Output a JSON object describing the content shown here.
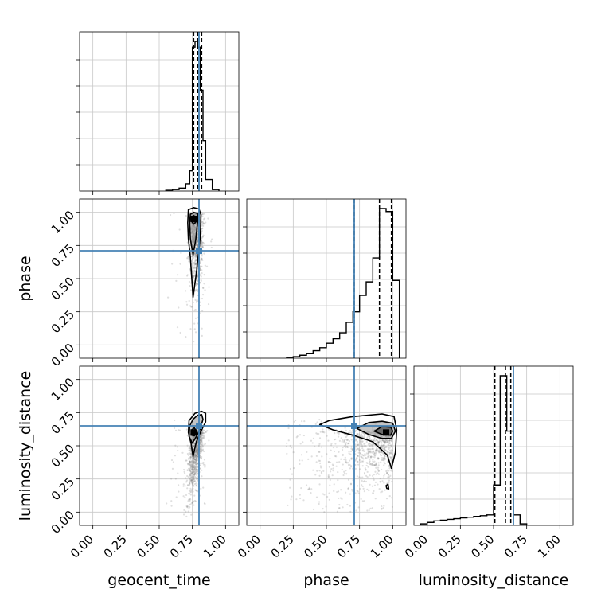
{
  "chart_data": {
    "type": "corner",
    "parameters": [
      "geocent_time",
      "phase",
      "luminosity_distance"
    ],
    "axis_range": [
      -0.1,
      1.1
    ],
    "tick_values": [
      0.0,
      0.25,
      0.5,
      0.75,
      1.0
    ],
    "tick_labels": [
      "0.00",
      "0.25",
      "0.50",
      "0.75",
      "1.00"
    ],
    "grid": true,
    "truths": {
      "geocent_time": 0.8,
      "phase": 0.71,
      "luminosity_distance": 0.65
    },
    "truth_color": "#4682b4",
    "line_color": "#000000",
    "point_color": "#808080",
    "histograms": [
      {
        "parameter": "geocent_time",
        "bin_edges": [
          0.55,
          0.6,
          0.65,
          0.7,
          0.73,
          0.75,
          0.77,
          0.79,
          0.81,
          0.83,
          0.85,
          0.9,
          0.95
        ],
        "counts": [
          0.5,
          1,
          2,
          5,
          14,
          100,
          104,
          100,
          70,
          35,
          8,
          1
        ],
        "quantiles": [
          0.76,
          0.79,
          0.82
        ]
      },
      {
        "parameter": "phase",
        "bin_edges": [
          0.2,
          0.25,
          0.3,
          0.35,
          0.4,
          0.45,
          0.5,
          0.55,
          0.6,
          0.65,
          0.7,
          0.75,
          0.8,
          0.85,
          0.9,
          0.95,
          1.0,
          1.05
        ],
        "counts": [
          0.5,
          1,
          2,
          3,
          5,
          7,
          10,
          13,
          17,
          24,
          31,
          42,
          51,
          67,
          100,
          98,
          52
        ],
        "quantiles": [
          0.71,
          0.9,
          0.99
        ]
      },
      {
        "parameter": "luminosity_distance",
        "bin_edges": [
          -0.05,
          0.0,
          0.05,
          0.1,
          0.15,
          0.2,
          0.25,
          0.3,
          0.35,
          0.4,
          0.45,
          0.5,
          0.55,
          0.6,
          0.65,
          0.7,
          0.75
        ],
        "counts": [
          1,
          2,
          3,
          3.5,
          4,
          4.5,
          5,
          5.5,
          6,
          6.5,
          7,
          27,
          100,
          63,
          7,
          1
        ],
        "quantiles": [
          0.51,
          0.59,
          0.63
        ]
      }
    ],
    "pairs": [
      {
        "x_param": "geocent_time",
        "y_param": "phase",
        "peak": [
          0.76,
          0.95
        ],
        "contours": [
          [
            [
              0.745,
              0.93
            ],
            [
              0.76,
              0.91
            ],
            [
              0.775,
              0.925
            ],
            [
              0.775,
              0.965
            ],
            [
              0.76,
              0.975
            ],
            [
              0.745,
              0.965
            ]
          ],
          [
            [
              0.735,
              0.8
            ],
            [
              0.755,
              0.68
            ],
            [
              0.775,
              0.79
            ],
            [
              0.79,
              0.93
            ],
            [
              0.79,
              0.99
            ],
            [
              0.76,
              1.0
            ],
            [
              0.735,
              0.985
            ],
            [
              0.73,
              0.92
            ]
          ],
          [
            [
              0.735,
              0.66
            ],
            [
              0.755,
              0.36
            ],
            [
              0.78,
              0.54
            ],
            [
              0.81,
              0.82
            ],
            [
              0.815,
              0.98
            ],
            [
              0.8,
              1.025
            ],
            [
              0.76,
              1.035
            ],
            [
              0.72,
              1.02
            ],
            [
              0.715,
              0.92
            ],
            [
              0.72,
              0.8
            ]
          ]
        ]
      },
      {
        "x_param": "geocent_time",
        "y_param": "luminosity_distance",
        "peak": [
          0.76,
          0.6
        ],
        "contours": [
          [
            [
              0.745,
              0.58
            ],
            [
              0.765,
              0.575
            ],
            [
              0.78,
              0.61
            ],
            [
              0.765,
              0.635
            ],
            [
              0.745,
              0.62
            ]
          ],
          [
            [
              0.725,
              0.57
            ],
            [
              0.75,
              0.52
            ],
            [
              0.78,
              0.57
            ],
            [
              0.81,
              0.63
            ],
            [
              0.83,
              0.7
            ],
            [
              0.82,
              0.735
            ],
            [
              0.79,
              0.73
            ],
            [
              0.755,
              0.7
            ],
            [
              0.73,
              0.65
            ]
          ],
          [
            [
              0.74,
              0.52
            ],
            [
              0.755,
              0.42
            ],
            [
              0.78,
              0.53
            ],
            [
              0.81,
              0.6
            ],
            [
              0.85,
              0.68
            ],
            [
              0.85,
              0.745
            ],
            [
              0.82,
              0.76
            ],
            [
              0.77,
              0.745
            ],
            [
              0.725,
              0.69
            ],
            [
              0.72,
              0.6
            ]
          ]
        ]
      },
      {
        "x_param": "phase",
        "y_param": "luminosity_distance",
        "peak": [
          0.95,
          0.6
        ],
        "contours": [
          [
            [
              0.86,
              0.61
            ],
            [
              0.92,
              0.585
            ],
            [
              0.985,
              0.58
            ],
            [
              1.0,
              0.61
            ],
            [
              0.985,
              0.64
            ],
            [
              0.92,
              0.645
            ]
          ],
          [
            [
              0.73,
              0.63
            ],
            [
              0.82,
              0.585
            ],
            [
              0.92,
              0.555
            ],
            [
              0.99,
              0.555
            ],
            [
              1.02,
              0.61
            ],
            [
              1.0,
              0.67
            ],
            [
              0.92,
              0.685
            ],
            [
              0.82,
              0.675
            ]
          ],
          [
            [
              0.45,
              0.66
            ],
            [
              0.55,
              0.62
            ],
            [
              0.7,
              0.58
            ],
            [
              0.85,
              0.53
            ],
            [
              0.96,
              0.43
            ],
            [
              0.99,
              0.33
            ],
            [
              1.02,
              0.45
            ],
            [
              1.03,
              0.62
            ],
            [
              1.01,
              0.72
            ],
            [
              0.92,
              0.74
            ],
            [
              0.7,
              0.72
            ],
            [
              0.52,
              0.69
            ]
          ],
          [
            [
              0.955,
              0.18
            ],
            [
              0.97,
              0.175
            ],
            [
              0.965,
              0.21
            ],
            [
              0.95,
              0.2
            ]
          ]
        ]
      }
    ]
  }
}
